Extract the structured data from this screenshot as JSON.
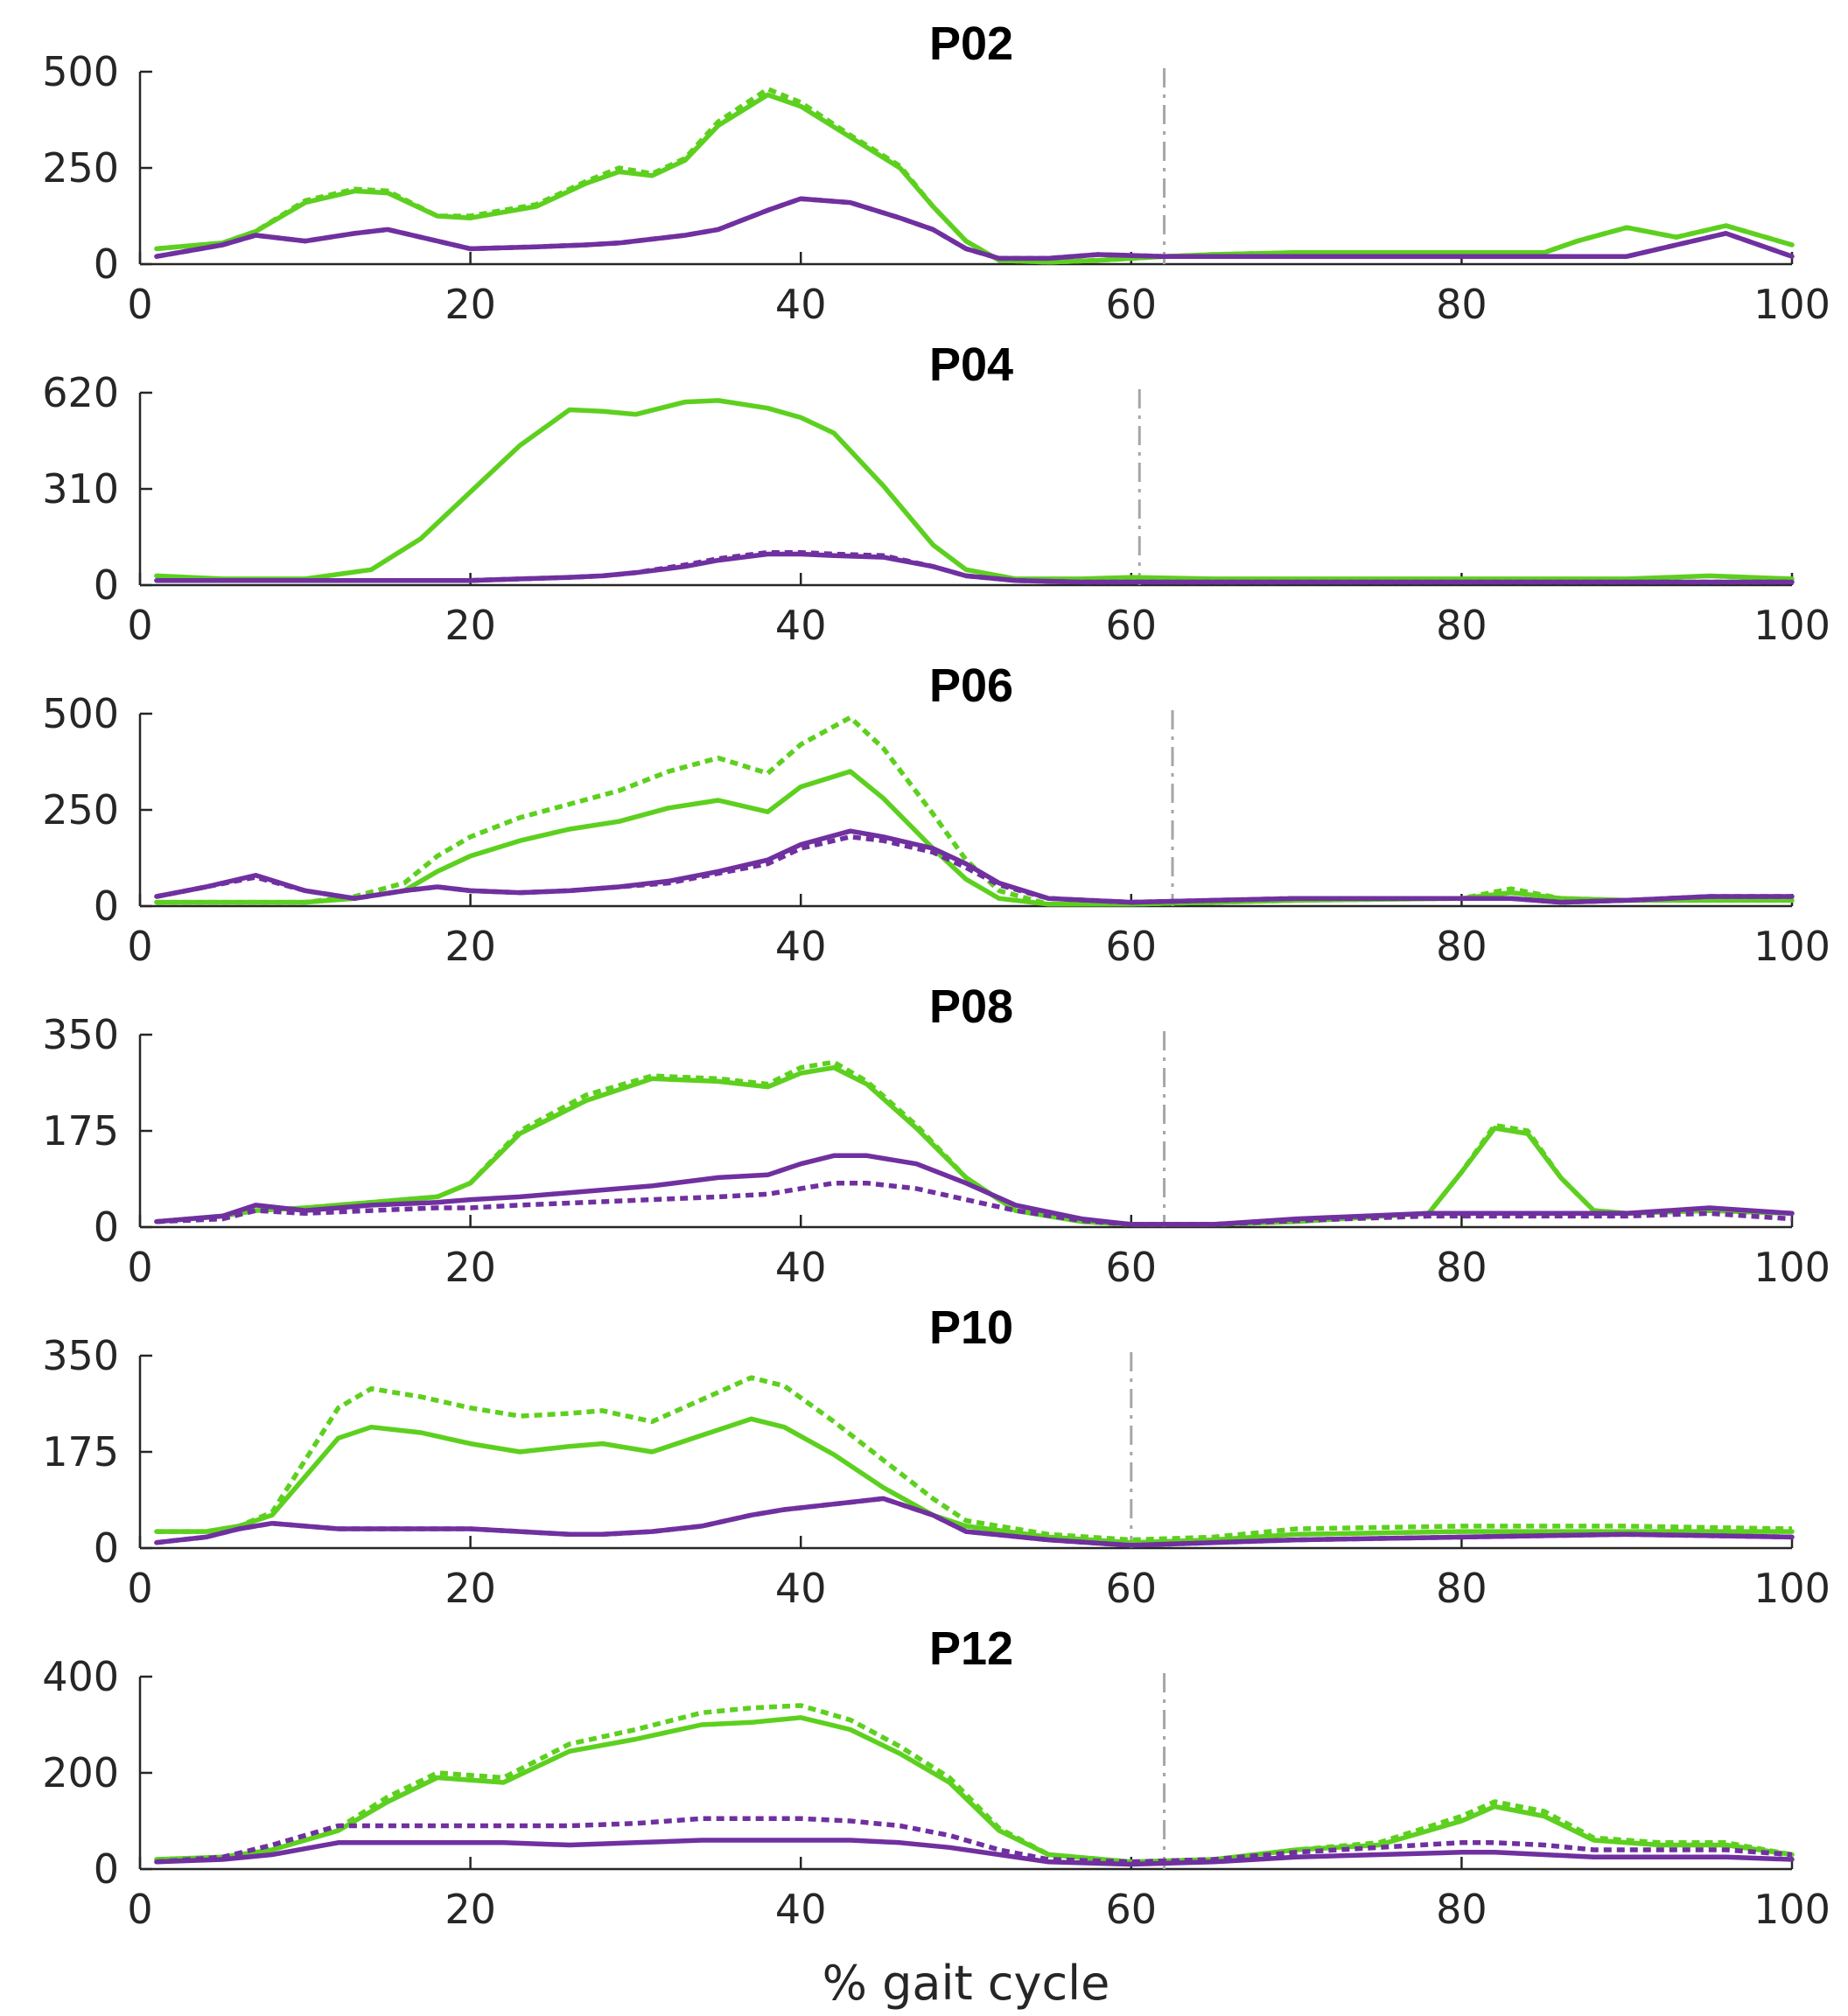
{
  "colors": {
    "green": "#5dd01f",
    "purple": "#7030a0",
    "event_line": "#a6a6a6",
    "axis": "#262626"
  },
  "xlabel": "% gait cycle",
  "chart_data": [
    {
      "type": "line",
      "title": "P02",
      "xlim": [
        0,
        100
      ],
      "ylim": [
        0,
        500
      ],
      "xticks": [
        0,
        20,
        40,
        60,
        80,
        100
      ],
      "yticks": [
        0,
        250,
        500
      ],
      "event_x": 62,
      "x": [
        1,
        5,
        7,
        10,
        13,
        15,
        18,
        20,
        24,
        27,
        29,
        31,
        33,
        35,
        38,
        40,
        43,
        46,
        48,
        50,
        52,
        55,
        58,
        62,
        65,
        70,
        75,
        80,
        85,
        87,
        90,
        93,
        96,
        100
      ],
      "series": [
        {
          "color": "green",
          "dash": "solid",
          "values": [
            40,
            55,
            85,
            160,
            190,
            185,
            125,
            120,
            150,
            210,
            240,
            230,
            270,
            360,
            440,
            410,
            330,
            250,
            150,
            60,
            10,
            5,
            10,
            20,
            25,
            30,
            30,
            30,
            30,
            60,
            95,
            70,
            100,
            50
          ]
        },
        {
          "color": "green",
          "dash": "dashed",
          "values": [
            40,
            55,
            85,
            165,
            195,
            190,
            125,
            125,
            155,
            215,
            250,
            235,
            275,
            370,
            455,
            420,
            335,
            255,
            150,
            60,
            10,
            5,
            10,
            20,
            25,
            30,
            30,
            30,
            30,
            60,
            95,
            70,
            100,
            50
          ]
        },
        {
          "color": "purple",
          "dash": "solid",
          "values": [
            20,
            50,
            75,
            60,
            80,
            90,
            60,
            40,
            45,
            50,
            55,
            65,
            75,
            90,
            140,
            170,
            160,
            120,
            90,
            40,
            15,
            15,
            25,
            20,
            20,
            20,
            20,
            20,
            20,
            20,
            20,
            50,
            80,
            20
          ]
        },
        {
          "color": "purple",
          "dash": "dashed",
          "values": [
            20,
            50,
            75,
            60,
            80,
            90,
            60,
            40,
            45,
            50,
            55,
            65,
            75,
            90,
            140,
            170,
            160,
            120,
            90,
            40,
            15,
            15,
            25,
            20,
            20,
            20,
            20,
            20,
            20,
            20,
            20,
            50,
            80,
            20
          ]
        }
      ]
    },
    {
      "type": "line",
      "title": "P04",
      "xlim": [
        0,
        100
      ],
      "ylim": [
        0,
        620
      ],
      "xticks": [
        0,
        20,
        40,
        60,
        80,
        100
      ],
      "yticks": [
        0,
        310,
        620
      ],
      "event_x": 60.5,
      "x": [
        1,
        5,
        10,
        14,
        17,
        20,
        23,
        26,
        28,
        30,
        33,
        35,
        38,
        40,
        42,
        45,
        48,
        50,
        53,
        57,
        60,
        65,
        70,
        80,
        90,
        95,
        100
      ],
      "series": [
        {
          "color": "green",
          "dash": "solid",
          "values": [
            30,
            20,
            20,
            50,
            150,
            300,
            450,
            565,
            560,
            550,
            590,
            595,
            570,
            540,
            490,
            320,
            130,
            50,
            20,
            20,
            25,
            20,
            20,
            20,
            20,
            30,
            20
          ]
        },
        {
          "color": "purple",
          "dash": "solid",
          "values": [
            15,
            15,
            15,
            15,
            15,
            15,
            20,
            25,
            30,
            40,
            60,
            80,
            100,
            100,
            95,
            90,
            60,
            30,
            15,
            10,
            10,
            10,
            10,
            10,
            10,
            10,
            10
          ]
        },
        {
          "color": "purple",
          "dash": "dashed",
          "values": [
            15,
            15,
            15,
            15,
            15,
            15,
            20,
            25,
            30,
            40,
            65,
            85,
            105,
            105,
            100,
            95,
            60,
            30,
            15,
            10,
            10,
            10,
            10,
            10,
            10,
            10,
            10
          ]
        }
      ]
    },
    {
      "type": "line",
      "title": "P06",
      "xlim": [
        0,
        100
      ],
      "ylim": [
        0,
        500
      ],
      "xticks": [
        0,
        20,
        40,
        60,
        80,
        100
      ],
      "yticks": [
        0,
        250,
        500
      ],
      "event_x": 62.5,
      "x": [
        1,
        4,
        7,
        10,
        13,
        16,
        18,
        20,
        23,
        26,
        29,
        32,
        35,
        38,
        40,
        43,
        45,
        48,
        50,
        52,
        55,
        60,
        65,
        70,
        80,
        83,
        86,
        90,
        95,
        100
      ],
      "series": [
        {
          "color": "green",
          "dash": "solid",
          "values": [
            10,
            10,
            10,
            10,
            20,
            40,
            90,
            130,
            170,
            200,
            220,
            255,
            275,
            245,
            310,
            350,
            280,
            150,
            70,
            20,
            5,
            5,
            10,
            15,
            20,
            35,
            20,
            15,
            15,
            15
          ]
        },
        {
          "color": "green",
          "dash": "dashed",
          "values": [
            10,
            10,
            10,
            10,
            25,
            60,
            130,
            180,
            230,
            265,
            300,
            350,
            385,
            345,
            420,
            490,
            410,
            240,
            120,
            40,
            5,
            5,
            10,
            15,
            20,
            45,
            20,
            15,
            15,
            15
          ]
        },
        {
          "color": "purple",
          "dash": "solid",
          "values": [
            25,
            50,
            80,
            40,
            20,
            40,
            50,
            40,
            35,
            40,
            50,
            65,
            90,
            120,
            160,
            195,
            180,
            150,
            110,
            60,
            20,
            10,
            15,
            20,
            20,
            20,
            10,
            15,
            25,
            25
          ]
        },
        {
          "color": "purple",
          "dash": "dashed",
          "values": [
            25,
            50,
            75,
            40,
            20,
            40,
            50,
            40,
            35,
            40,
            50,
            60,
            85,
            110,
            150,
            180,
            170,
            140,
            100,
            55,
            20,
            10,
            15,
            20,
            20,
            20,
            10,
            15,
            25,
            25
          ]
        }
      ]
    },
    {
      "type": "line",
      "title": "P08",
      "xlim": [
        0,
        100
      ],
      "ylim": [
        0,
        350
      ],
      "xticks": [
        0,
        20,
        40,
        60,
        80,
        100
      ],
      "yticks": [
        0,
        175,
        350
      ],
      "event_x": 62,
      "x": [
        1,
        5,
        7,
        10,
        14,
        18,
        20,
        23,
        27,
        31,
        35,
        38,
        40,
        42,
        44,
        47,
        50,
        53,
        57,
        60,
        65,
        70,
        78,
        80,
        82,
        84,
        86,
        88,
        90,
        95,
        100
      ],
      "series": [
        {
          "color": "green",
          "dash": "solid",
          "values": [
            10,
            20,
            30,
            35,
            45,
            55,
            80,
            170,
            230,
            270,
            265,
            255,
            280,
            290,
            260,
            180,
            90,
            30,
            10,
            5,
            5,
            10,
            25,
            100,
            180,
            170,
            90,
            30,
            25,
            30,
            25
          ]
        },
        {
          "color": "green",
          "dash": "dashed",
          "values": [
            10,
            20,
            30,
            35,
            45,
            55,
            80,
            175,
            240,
            275,
            270,
            260,
            290,
            300,
            265,
            185,
            90,
            30,
            10,
            5,
            5,
            10,
            25,
            100,
            185,
            175,
            90,
            30,
            25,
            30,
            25
          ]
        },
        {
          "color": "purple",
          "dash": "solid",
          "values": [
            10,
            20,
            40,
            30,
            40,
            45,
            50,
            55,
            65,
            75,
            90,
            95,
            115,
            130,
            130,
            115,
            80,
            40,
            15,
            5,
            5,
            15,
            25,
            25,
            25,
            25,
            25,
            25,
            25,
            35,
            25
          ]
        },
        {
          "color": "purple",
          "dash": "dashed",
          "values": [
            10,
            15,
            30,
            25,
            30,
            35,
            35,
            40,
            45,
            50,
            55,
            60,
            70,
            80,
            80,
            70,
            50,
            30,
            12,
            5,
            5,
            12,
            20,
            20,
            20,
            20,
            20,
            20,
            20,
            25,
            15
          ]
        }
      ]
    },
    {
      "type": "line",
      "title": "P10",
      "xlim": [
        0,
        100
      ],
      "ylim": [
        0,
        350
      ],
      "xticks": [
        0,
        20,
        40,
        60,
        80,
        100
      ],
      "yticks": [
        0,
        175,
        350
      ],
      "event_x": 60,
      "x": [
        1,
        4,
        6,
        8,
        10,
        12,
        14,
        17,
        20,
        23,
        26,
        28,
        31,
        34,
        37,
        39,
        42,
        45,
        48,
        50,
        55,
        60,
        65,
        70,
        80,
        90,
        100
      ],
      "series": [
        {
          "color": "green",
          "dash": "solid",
          "values": [
            30,
            30,
            40,
            60,
            130,
            200,
            220,
            210,
            190,
            175,
            185,
            190,
            175,
            205,
            235,
            220,
            170,
            110,
            60,
            40,
            20,
            10,
            15,
            25,
            30,
            30,
            30
          ]
        },
        {
          "color": "green",
          "dash": "dashed",
          "values": [
            30,
            30,
            40,
            65,
            160,
            255,
            290,
            275,
            255,
            240,
            245,
            250,
            230,
            270,
            310,
            295,
            230,
            160,
            90,
            50,
            25,
            15,
            20,
            35,
            40,
            40,
            35
          ]
        },
        {
          "color": "purple",
          "dash": "solid",
          "values": [
            10,
            20,
            35,
            45,
            40,
            35,
            35,
            35,
            35,
            30,
            25,
            25,
            30,
            40,
            60,
            70,
            80,
            90,
            60,
            30,
            15,
            5,
            10,
            15,
            20,
            25,
            20
          ]
        },
        {
          "color": "purple",
          "dash": "dashed",
          "values": [
            10,
            20,
            35,
            45,
            40,
            35,
            35,
            35,
            35,
            30,
            25,
            25,
            30,
            40,
            60,
            70,
            80,
            90,
            60,
            30,
            15,
            5,
            10,
            15,
            20,
            25,
            20
          ]
        }
      ]
    },
    {
      "type": "line",
      "title": "P12",
      "xlim": [
        0,
        100
      ],
      "ylim": [
        0,
        400
      ],
      "xticks": [
        0,
        20,
        40,
        60,
        80,
        100
      ],
      "yticks": [
        0,
        200,
        400
      ],
      "event_x": 62,
      "x": [
        1,
        5,
        8,
        12,
        15,
        18,
        22,
        26,
        30,
        34,
        37,
        40,
        43,
        46,
        49,
        52,
        55,
        60,
        65,
        70,
        75,
        80,
        82,
        85,
        88,
        92,
        96,
        100
      ],
      "series": [
        {
          "color": "green",
          "dash": "solid",
          "values": [
            20,
            25,
            40,
            80,
            140,
            190,
            180,
            245,
            270,
            300,
            305,
            315,
            290,
            240,
            180,
            80,
            30,
            15,
            20,
            40,
            50,
            100,
            130,
            110,
            60,
            50,
            50,
            30
          ]
        },
        {
          "color": "green",
          "dash": "dashed",
          "values": [
            20,
            25,
            45,
            85,
            150,
            200,
            190,
            260,
            290,
            325,
            335,
            340,
            310,
            255,
            190,
            85,
            30,
            15,
            20,
            40,
            55,
            110,
            140,
            120,
            65,
            55,
            55,
            30
          ]
        },
        {
          "color": "purple",
          "dash": "solid",
          "values": [
            15,
            20,
            30,
            55,
            55,
            55,
            55,
            50,
            55,
            60,
            60,
            60,
            60,
            55,
            45,
            30,
            15,
            10,
            15,
            25,
            30,
            35,
            35,
            30,
            25,
            25,
            25,
            20
          ]
        },
        {
          "color": "purple",
          "dash": "dashed",
          "values": [
            15,
            25,
            50,
            90,
            90,
            90,
            90,
            90,
            95,
            105,
            105,
            105,
            100,
            90,
            70,
            40,
            20,
            15,
            20,
            35,
            45,
            55,
            55,
            50,
            40,
            40,
            40,
            30
          ]
        }
      ]
    }
  ]
}
